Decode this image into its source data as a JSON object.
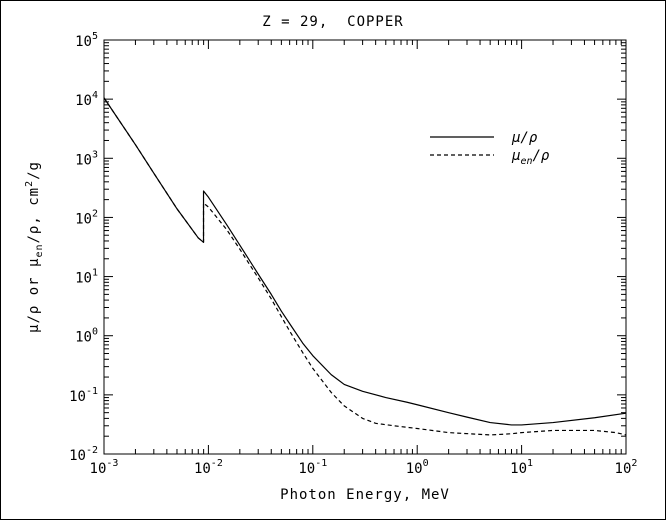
{
  "chart_data": {
    "type": "line",
    "title": "Z = 29,  COPPER",
    "xlabel": "Photon Energy, MeV",
    "ylabel_parts": [
      "μ/ρ or μ",
      "en",
      "/ρ, cm",
      "2",
      "/g"
    ],
    "x_scale": "log",
    "y_scale": "log",
    "xlim": [
      0.001,
      100
    ],
    "ylim": [
      0.01,
      100000
    ],
    "x_ticks": [
      {
        "base": "10",
        "exp": "-3",
        "value": 0.001
      },
      {
        "base": "10",
        "exp": "-2",
        "value": 0.01
      },
      {
        "base": "10",
        "exp": "-1",
        "value": 0.1
      },
      {
        "base": "10",
        "exp": "0",
        "value": 1
      },
      {
        "base": "10",
        "exp": "1",
        "value": 10
      },
      {
        "base": "10",
        "exp": "2",
        "value": 100
      }
    ],
    "y_ticks": [
      {
        "base": "10",
        "exp": "-2",
        "value": 0.01
      },
      {
        "base": "10",
        "exp": "-1",
        "value": 0.1
      },
      {
        "base": "10",
        "exp": "0",
        "value": 1
      },
      {
        "base": "10",
        "exp": "1",
        "value": 10
      },
      {
        "base": "10",
        "exp": "2",
        "value": 100
      },
      {
        "base": "10",
        "exp": "3",
        "value": 1000
      },
      {
        "base": "10",
        "exp": "4",
        "value": 10000
      },
      {
        "base": "10",
        "exp": "5",
        "value": 100000
      }
    ],
    "grid": false,
    "legend_position": "top-right",
    "series": [
      {
        "name_parts": [
          "μ/ρ"
        ],
        "style": "solid",
        "points": [
          [
            0.001,
            10500
          ],
          [
            0.002,
            1700
          ],
          [
            0.003,
            560
          ],
          [
            0.005,
            140
          ],
          [
            0.008,
            45
          ],
          [
            0.00898,
            38
          ],
          [
            0.00898,
            280
          ],
          [
            0.01,
            220
          ],
          [
            0.015,
            75
          ],
          [
            0.02,
            34
          ],
          [
            0.03,
            11
          ],
          [
            0.04,
            5
          ],
          [
            0.05,
            2.6
          ],
          [
            0.06,
            1.6
          ],
          [
            0.08,
            0.75
          ],
          [
            0.1,
            0.46
          ],
          [
            0.15,
            0.22
          ],
          [
            0.2,
            0.15
          ],
          [
            0.3,
            0.115
          ],
          [
            0.5,
            0.09
          ],
          [
            0.8,
            0.075
          ],
          [
            1,
            0.068
          ],
          [
            2,
            0.05
          ],
          [
            3,
            0.042
          ],
          [
            5,
            0.034
          ],
          [
            8,
            0.031
          ],
          [
            10,
            0.031
          ],
          [
            20,
            0.034
          ],
          [
            50,
            0.041
          ],
          [
            100,
            0.049
          ]
        ]
      },
      {
        "name_parts": [
          "μ",
          "en",
          "/ρ"
        ],
        "style": "dashed",
        "points": [
          [
            0.001,
            10500
          ],
          [
            0.002,
            1700
          ],
          [
            0.003,
            560
          ],
          [
            0.005,
            140
          ],
          [
            0.008,
            45
          ],
          [
            0.00898,
            38
          ],
          [
            0.00898,
            175
          ],
          [
            0.01,
            150
          ],
          [
            0.015,
            62
          ],
          [
            0.02,
            29
          ],
          [
            0.03,
            9.5
          ],
          [
            0.04,
            4.2
          ],
          [
            0.05,
            2.1
          ],
          [
            0.06,
            1.2
          ],
          [
            0.08,
            0.52
          ],
          [
            0.1,
            0.28
          ],
          [
            0.15,
            0.11
          ],
          [
            0.2,
            0.065
          ],
          [
            0.3,
            0.04
          ],
          [
            0.4,
            0.033
          ],
          [
            0.6,
            0.03
          ],
          [
            1,
            0.027
          ],
          [
            2,
            0.023
          ],
          [
            5,
            0.021
          ],
          [
            8,
            0.022
          ],
          [
            10,
            0.023
          ],
          [
            20,
            0.025
          ],
          [
            50,
            0.025
          ],
          [
            80,
            0.023
          ],
          [
            100,
            0.021
          ]
        ]
      }
    ]
  }
}
